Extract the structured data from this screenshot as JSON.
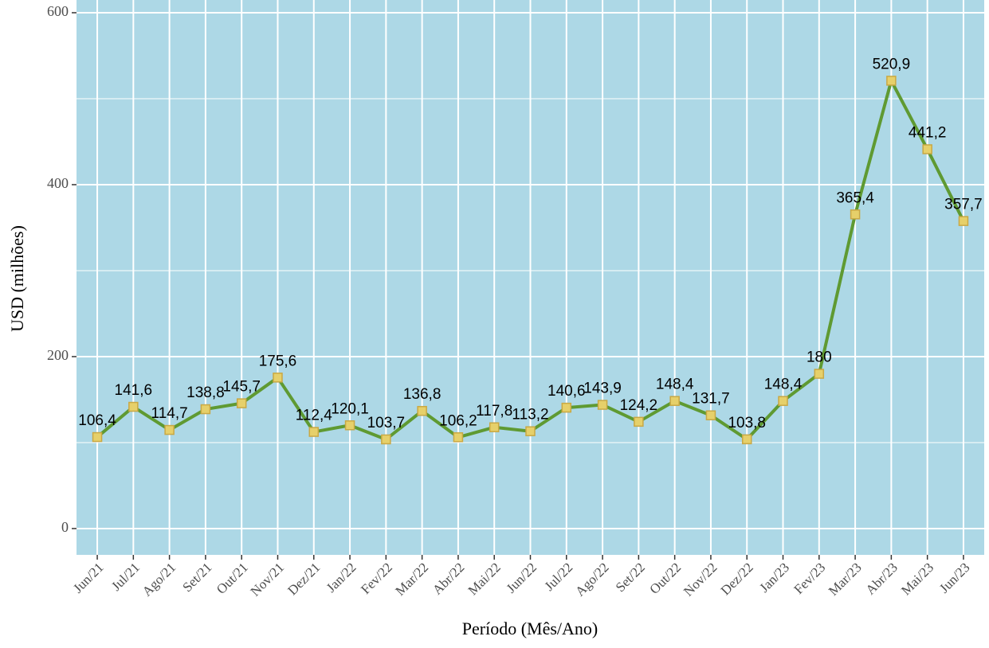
{
  "chart_data": {
    "type": "line",
    "x_label": "Período (Mês/Ano)",
    "y_label": "USD (milhões)",
    "categories": [
      "Jun/21",
      "Jul/21",
      "Ago/21",
      "Set/21",
      "Out/21",
      "Nov/21",
      "Dez/21",
      "Jan/22",
      "Fev/22",
      "Mar/22",
      "Abr/22",
      "Mai/22",
      "Jun/22",
      "Jul/22",
      "Ago/22",
      "Set/22",
      "Out/22",
      "Nov/22",
      "Dez/22",
      "Jan/23",
      "Fev/23",
      "Mar/23",
      "Abr/23",
      "Mai/23",
      "Jun/23"
    ],
    "values": [
      106.4,
      141.6,
      114.7,
      138.8,
      145.7,
      175.6,
      112.4,
      120.1,
      103.7,
      136.8,
      106.2,
      117.8,
      113.2,
      140.6,
      143.9,
      124.2,
      148.4,
      131.7,
      103.8,
      148.4,
      180,
      365.4,
      520.9,
      441.2,
      357.7
    ],
    "value_labels": [
      "106,4",
      "141,6",
      "114,7",
      "138,8",
      "145,7",
      "175,6",
      "112,4",
      "120,1",
      "103,7",
      "136,8",
      "106,2",
      "117,8",
      "113,2",
      "140,6",
      "143,9",
      "124,2",
      "148,4",
      "131,7",
      "103,8",
      "148,4",
      "180",
      "365,4",
      "520,9",
      "441,2",
      "357,7"
    ],
    "color": "#5f9a32",
    "marker_fill": "#e6d06a",
    "marker_edge": "#c9a844",
    "panel_color": "#add8e6",
    "ylim": [
      -30.6,
      614.8
    ],
    "yticks": [
      0,
      200,
      400,
      600
    ],
    "yminor": [
      100,
      300,
      500
    ],
    "grid": true
  }
}
